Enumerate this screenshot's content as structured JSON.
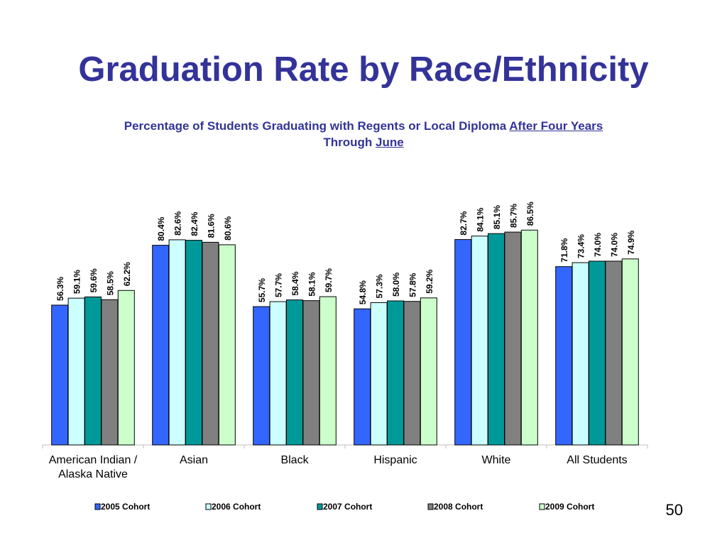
{
  "title": "Graduation Rate by Race/Ethnicity",
  "subtitle": {
    "line1_prefix": "Percentage of Students Graduating with Regents or Local Diploma",
    "line1_underlined": "After Four Years",
    "line2_prefix": "Through",
    "line2_underlined": "June"
  },
  "page_number": "50",
  "chart_data": {
    "type": "bar",
    "categories": [
      "American Indian / Alaska Native",
      "Asian",
      "Black",
      "Hispanic",
      "White",
      "All Students"
    ],
    "category_lines": [
      [
        "American Indian /",
        "Alaska Native"
      ],
      [
        "Asian"
      ],
      [
        "Black"
      ],
      [
        "Hispanic"
      ],
      [
        "White"
      ],
      [
        "All Students"
      ]
    ],
    "series": [
      {
        "name": "2005 Cohort",
        "color": "#3366FF",
        "values": [
          56.3,
          80.4,
          55.7,
          54.8,
          82.7,
          71.8
        ],
        "labels": [
          "56.3%",
          "80.4%",
          "55.7%",
          "54.8%",
          "82.7%",
          "71.8%"
        ]
      },
      {
        "name": "2006 Cohort",
        "color": "#CCFFFF",
        "values": [
          59.1,
          82.6,
          57.7,
          57.3,
          84.1,
          73.4
        ],
        "labels": [
          "59.1%",
          "82.6%",
          "57.7%",
          "57.3%",
          "84.1%",
          "73.4%"
        ]
      },
      {
        "name": "2007 Cohort",
        "color": "#009999",
        "values": [
          59.6,
          82.4,
          58.4,
          58.0,
          85.1,
          74.0
        ],
        "labels": [
          "59.6%",
          "82.4%",
          "58.4%",
          "58.0%",
          "85.1%",
          "74.0%"
        ]
      },
      {
        "name": "2008 Cohort",
        "color": "#808080",
        "values": [
          58.5,
          81.6,
          58.1,
          57.8,
          85.7,
          74.0
        ],
        "labels": [
          "58.5%",
          "81.6%",
          "58.1%",
          "57.8%",
          "85.7%",
          "74.0%"
        ]
      },
      {
        "name": "2009 Cohort",
        "color": "#CCFFCC",
        "values": [
          62.2,
          80.6,
          59.7,
          59.2,
          86.5,
          74.9
        ],
        "labels": [
          "62.2%",
          "80.6%",
          "59.7%",
          "59.2%",
          "86.5%",
          "74.9%"
        ]
      }
    ],
    "ylim": [
      0,
      100
    ],
    "xlabel": "",
    "ylabel": "",
    "grid": false,
    "legend_position": "bottom"
  }
}
